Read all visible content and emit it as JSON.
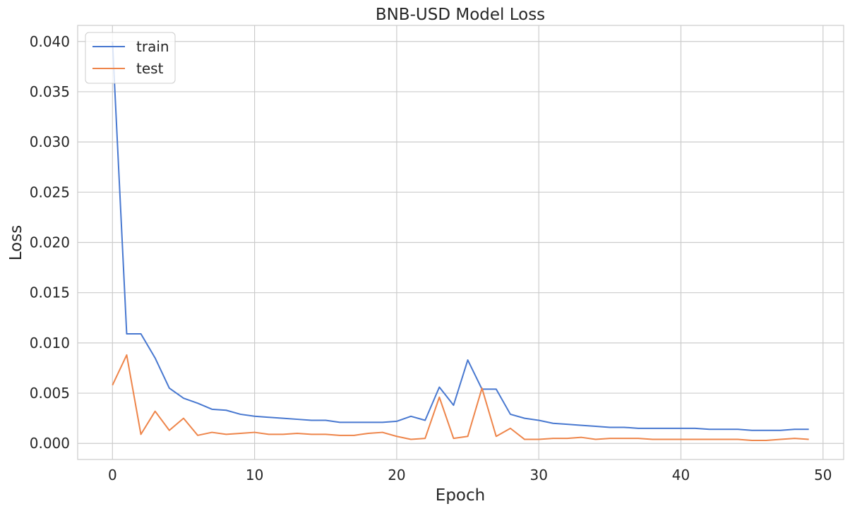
{
  "chart_data": {
    "type": "line",
    "title": "BNB-USD Model Loss",
    "xlabel": "Epoch",
    "ylabel": "Loss",
    "xlim": [
      -2.45,
      51.45
    ],
    "ylim": [
      -0.0016,
      0.0416
    ],
    "x_ticks": [
      0,
      10,
      20,
      30,
      40,
      50
    ],
    "y_ticks": [
      0.0,
      0.005,
      0.01,
      0.015,
      0.02,
      0.025,
      0.03,
      0.035,
      0.04
    ],
    "y_tick_labels": [
      "0.000",
      "0.005",
      "0.010",
      "0.015",
      "0.020",
      "0.025",
      "0.030",
      "0.035",
      "0.040"
    ],
    "grid": true,
    "legend_position": "top-left",
    "x": [
      0,
      1,
      2,
      3,
      4,
      5,
      6,
      7,
      8,
      9,
      10,
      11,
      12,
      13,
      14,
      15,
      16,
      17,
      18,
      19,
      20,
      21,
      22,
      23,
      24,
      25,
      26,
      27,
      28,
      29,
      30,
      31,
      32,
      33,
      34,
      35,
      36,
      37,
      38,
      39,
      40,
      41,
      42,
      43,
      44,
      45,
      46,
      47,
      48,
      49
    ],
    "series": [
      {
        "name": "train",
        "color": "#4878d0",
        "values": [
          0.04,
          0.0109,
          0.0109,
          0.0085,
          0.0055,
          0.0045,
          0.004,
          0.0034,
          0.0033,
          0.0029,
          0.0027,
          0.0026,
          0.0025,
          0.0024,
          0.0023,
          0.0023,
          0.0021,
          0.0021,
          0.0021,
          0.0021,
          0.0022,
          0.0027,
          0.0023,
          0.0056,
          0.0038,
          0.0083,
          0.0054,
          0.0054,
          0.0029,
          0.0025,
          0.0023,
          0.002,
          0.0019,
          0.0018,
          0.0017,
          0.0016,
          0.0016,
          0.0015,
          0.0015,
          0.0015,
          0.0015,
          0.0015,
          0.0014,
          0.0014,
          0.0014,
          0.0013,
          0.0013,
          0.0013,
          0.0014,
          0.0014
        ]
      },
      {
        "name": "test",
        "color": "#ee854a",
        "values": [
          0.0058,
          0.0088,
          0.0009,
          0.0032,
          0.0013,
          0.0025,
          0.0008,
          0.0011,
          0.0009,
          0.001,
          0.0011,
          0.0009,
          0.0009,
          0.001,
          0.0009,
          0.0009,
          0.0008,
          0.0008,
          0.001,
          0.0011,
          0.0007,
          0.0004,
          0.0005,
          0.0046,
          0.0005,
          0.0007,
          0.0055,
          0.0007,
          0.0015,
          0.0004,
          0.0004,
          0.0005,
          0.0005,
          0.0006,
          0.0004,
          0.0005,
          0.0005,
          0.0005,
          0.0004,
          0.0004,
          0.0004,
          0.0004,
          0.0004,
          0.0004,
          0.0004,
          0.0003,
          0.0003,
          0.0004,
          0.0005,
          0.0004
        ]
      }
    ]
  }
}
